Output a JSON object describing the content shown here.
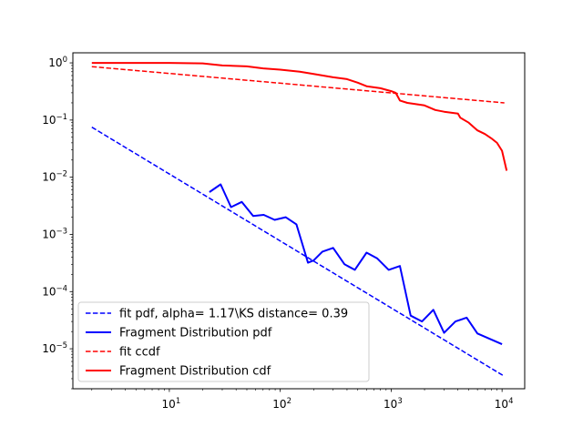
{
  "chart_data": {
    "type": "line",
    "title": "",
    "xlabel": "",
    "ylabel": "",
    "x_scale": "log",
    "y_scale": "log",
    "xlim": [
      1.35,
      16000
    ],
    "ylim": [
      2e-06,
      1.5
    ],
    "x_ticks": [
      {
        "value": 10,
        "base": "10",
        "exp": "1"
      },
      {
        "value": 100,
        "base": "10",
        "exp": "2"
      },
      {
        "value": 1000,
        "base": "10",
        "exp": "3"
      },
      {
        "value": 10000,
        "base": "10",
        "exp": "4"
      }
    ],
    "y_ticks": [
      {
        "value": 1e-05,
        "base": "10",
        "exp": "−5"
      },
      {
        "value": 0.0001,
        "base": "10",
        "exp": "−4"
      },
      {
        "value": 0.001,
        "base": "10",
        "exp": "−3"
      },
      {
        "value": 0.01,
        "base": "10",
        "exp": "−2"
      },
      {
        "value": 0.1,
        "base": "10",
        "exp": "−1"
      },
      {
        "value": 1,
        "base": "10",
        "exp": "0"
      }
    ],
    "grid": false,
    "legend_position": "lower-left",
    "series": [
      {
        "name": "fit pdf, alpha= 1.17\\KS distance= 0.39",
        "color": "#0000ff",
        "style": "dashed",
        "x": [
          2,
          10500
        ],
        "y": [
          0.075,
          3.3e-06
        ]
      },
      {
        "name": "Fragment Distribution pdf",
        "color": "#0000ff",
        "style": "solid",
        "x": [
          23,
          29,
          36,
          45,
          57,
          71,
          89,
          112,
          140,
          178,
          200,
          240,
          300,
          380,
          470,
          600,
          750,
          950,
          1200,
          1500,
          1900,
          2400,
          3000,
          3800,
          4800,
          6000,
          10000
        ],
        "y": [
          0.0055,
          0.0075,
          0.003,
          0.0037,
          0.0021,
          0.0022,
          0.0018,
          0.002,
          0.0015,
          0.00032,
          0.00035,
          0.0005,
          0.00058,
          0.0003,
          0.00024,
          0.00048,
          0.00038,
          0.00024,
          0.00028,
          3.8e-05,
          3e-05,
          4.8e-05,
          1.9e-05,
          3e-05,
          3.5e-05,
          1.85e-05,
          1.2e-05
        ]
      },
      {
        "name": "fit ccdf",
        "color": "#ff0000",
        "style": "dashed",
        "x": [
          2,
          10500
        ],
        "y": [
          0.86,
          0.2
        ]
      },
      {
        "name": "Fragment Distribution cdf",
        "color": "#ff0000",
        "style": "solid",
        "x": [
          2,
          10,
          20,
          30,
          50,
          70,
          100,
          150,
          200,
          300,
          400,
          500,
          600,
          800,
          1000,
          1100,
          1200,
          1400,
          2000,
          2500,
          3000,
          4000,
          4200,
          5000,
          6000,
          7000,
          8000,
          9000,
          10000,
          11000
        ],
        "y": [
          1,
          1,
          0.98,
          0.9,
          0.87,
          0.8,
          0.76,
          0.7,
          0.64,
          0.56,
          0.52,
          0.45,
          0.39,
          0.36,
          0.32,
          0.3,
          0.22,
          0.2,
          0.18,
          0.15,
          0.14,
          0.13,
          0.11,
          0.09,
          0.066,
          0.057,
          0.048,
          0.04,
          0.029,
          0.013
        ]
      }
    ]
  }
}
